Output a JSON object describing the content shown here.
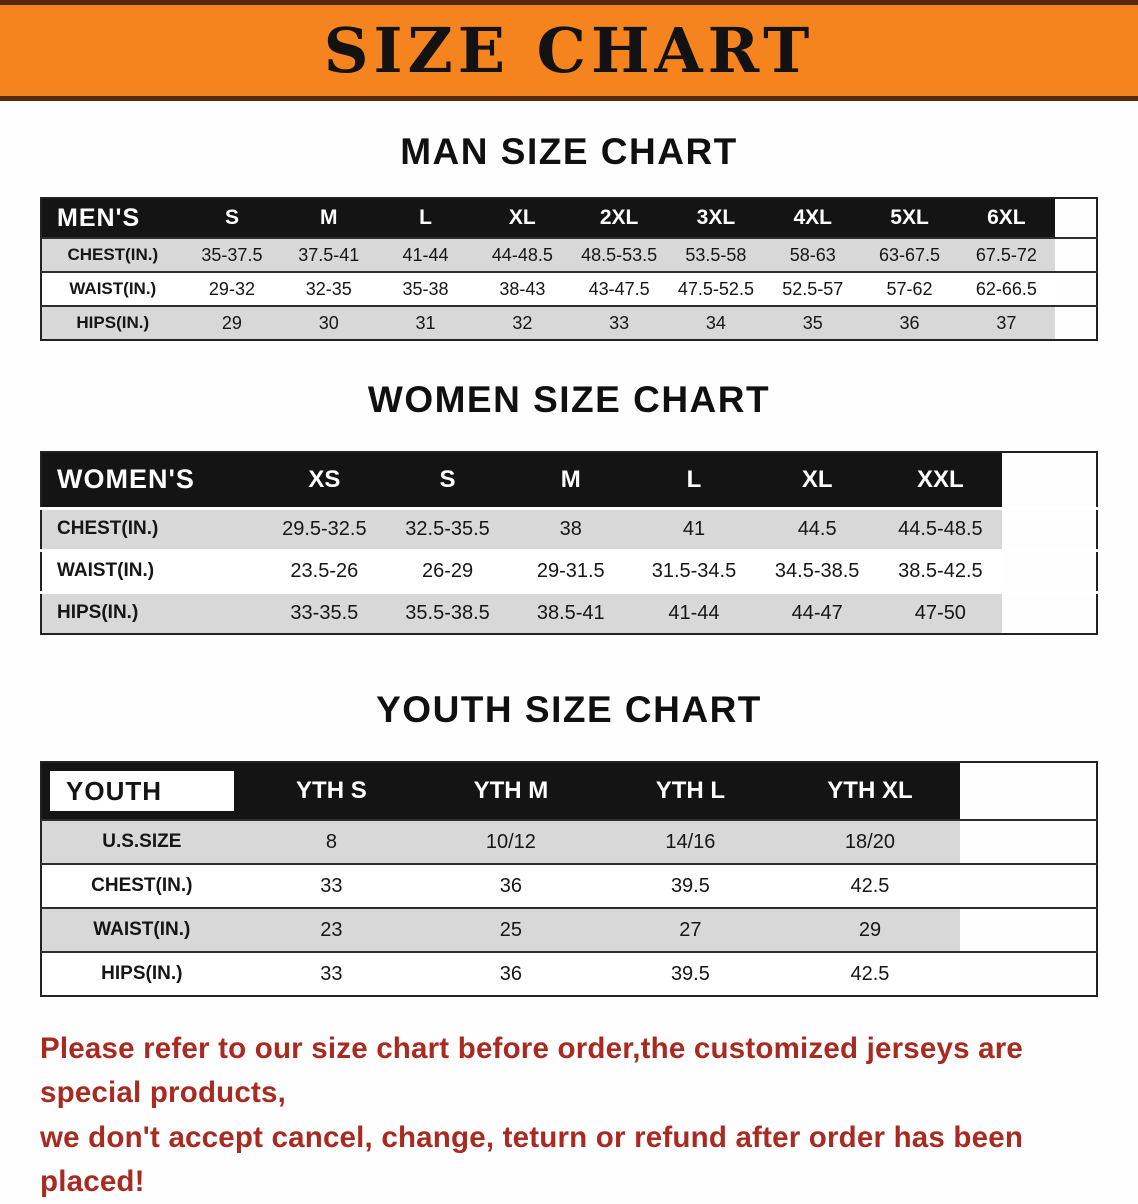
{
  "banner": {
    "title": "SIZE CHART"
  },
  "colors": {
    "banner_bg": "#f5841f",
    "banner_border": "#56290a",
    "header_bg": "#141414",
    "header_text": "#ffffff",
    "row_shade": "#d8d8d8",
    "table_border": "#222222",
    "note_text": "#a82a21"
  },
  "sections": [
    {
      "id": "men",
      "heading": "MAN SIZE CHART",
      "table": {
        "header": [
          "MEN'S",
          "S",
          "M",
          "L",
          "XL",
          "2XL",
          "3XL",
          "4XL",
          "5XL",
          "6XL"
        ],
        "rows": [
          [
            "CHEST(IN.)",
            "35-37.5",
            "37.5-41",
            "41-44",
            "44-48.5",
            "48.5-53.5",
            "53.5-58",
            "58-63",
            "63-67.5",
            "67.5-72"
          ],
          [
            "WAIST(IN.)",
            "29-32",
            "32-35",
            "35-38",
            "38-43",
            "43-47.5",
            "47.5-52.5",
            "52.5-57",
            "57-62",
            "62-66.5"
          ],
          [
            "HIPS(IN.)",
            "29",
            "30",
            "31",
            "32",
            "33",
            "34",
            "35",
            "36",
            "37"
          ]
        ]
      }
    },
    {
      "id": "women",
      "heading": "WOMEN SIZE CHART",
      "table": {
        "header": [
          "WOMEN'S",
          "XS",
          "S",
          "M",
          "L",
          "XL",
          "XXL"
        ],
        "rows": [
          [
            "CHEST(IN.)",
            "29.5-32.5",
            "32.5-35.5",
            "38",
            "41",
            "44.5",
            "44.5-48.5"
          ],
          [
            "WAIST(IN.)",
            "23.5-26",
            "26-29",
            "29-31.5",
            "31.5-34.5",
            "34.5-38.5",
            "38.5-42.5"
          ],
          [
            "HIPS(IN.)",
            "33-35.5",
            "35.5-38.5",
            "38.5-41",
            "41-44",
            "44-47",
            "47-50"
          ]
        ]
      }
    },
    {
      "id": "youth",
      "heading": "YOUTH SIZE CHART",
      "table": {
        "header": [
          "YOUTH",
          "YTH S",
          "YTH M",
          "YTH L",
          "YTH XL"
        ],
        "rows": [
          [
            "U.S.SIZE",
            "8",
            "10/12",
            "14/16",
            "18/20"
          ],
          [
            "CHEST(IN.)",
            "33",
            "36",
            "39.5",
            "42.5"
          ],
          [
            "WAIST(IN.)",
            "23",
            "25",
            "27",
            "29"
          ],
          [
            "HIPS(IN.)",
            "33",
            "36",
            "39.5",
            "42.5"
          ]
        ]
      }
    }
  ],
  "note": {
    "line1": "Please refer to our size chart before order,the customized jerseys are special products,",
    "line2": "we don't accept cancel, change, teturn or refund after order has been placed!"
  }
}
